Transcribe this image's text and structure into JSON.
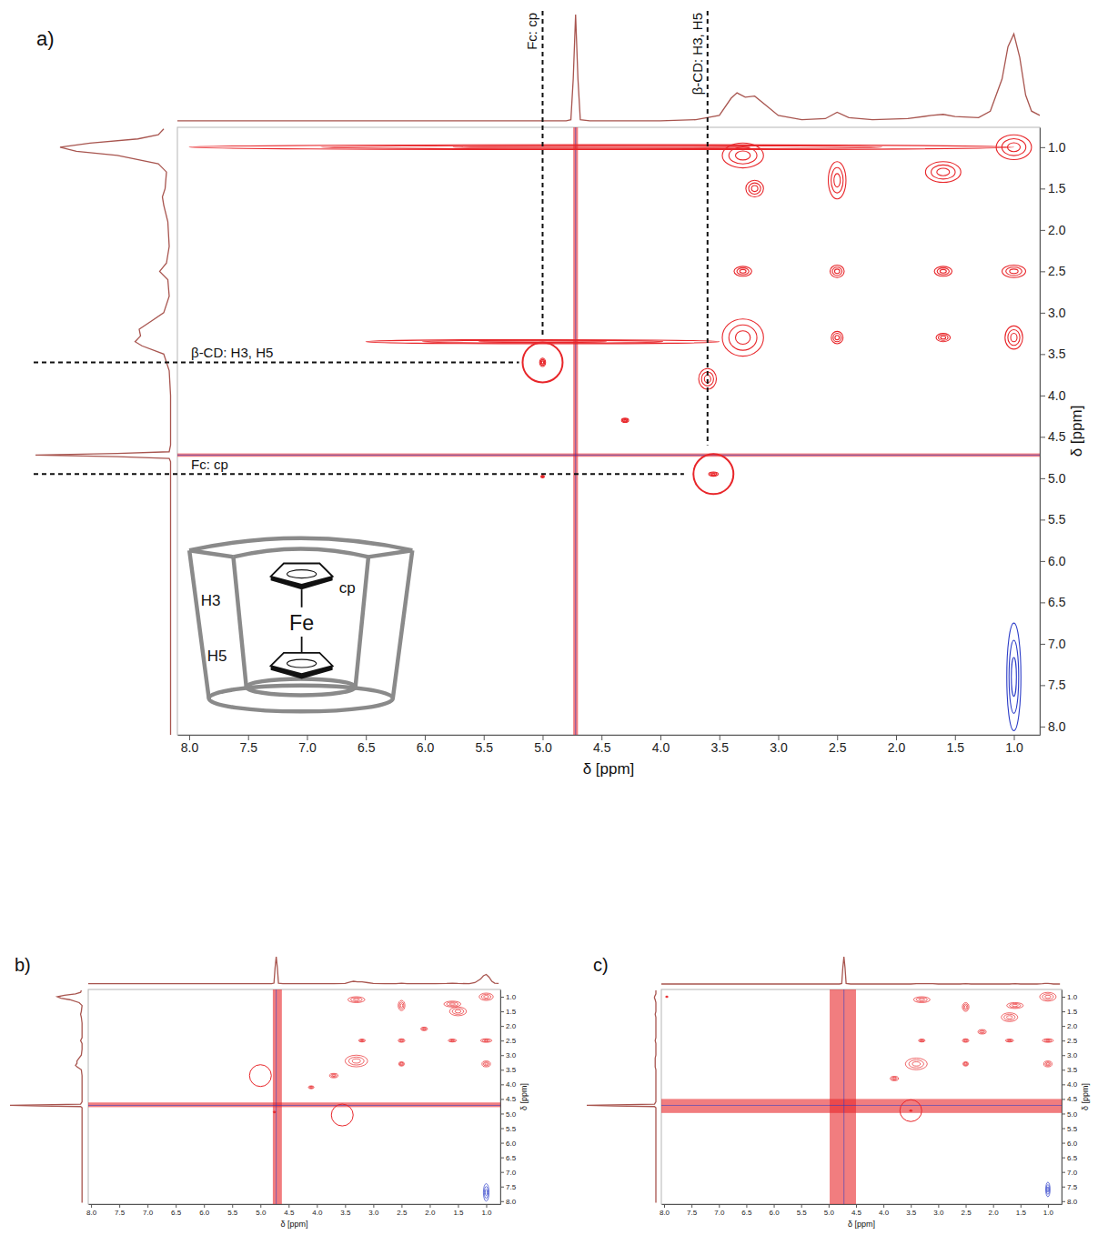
{
  "chart_data": [
    {
      "type": "contour",
      "panel": "a)",
      "xlabel": "δ [ppm]",
      "ylabel": "δ [ppm]",
      "xlim": [
        8.1,
        0.78
      ],
      "ylim": [
        0.76,
        8.1
      ],
      "xticks": [
        {
          "value": 8,
          "label": "8.0"
        },
        7.5,
        {
          "value": 7,
          "label": "7.0"
        },
        6.5,
        {
          "value": 6,
          "label": "6.0"
        },
        5.5,
        {
          "value": 5,
          "label": "5.0"
        },
        4.5,
        {
          "value": 4,
          "label": "4.0"
        },
        3.5,
        {
          "value": 3,
          "label": "3.0"
        },
        2.5,
        {
          "value": 2,
          "label": "2.0"
        },
        1.5,
        {
          "value": 1,
          "label": "1.0"
        }
      ],
      "yticks": [
        {
          "value": 1,
          "label": "1.0"
        },
        1.5,
        {
          "value": 2,
          "label": "2.0"
        },
        2.5,
        {
          "value": 3,
          "label": "3.0"
        },
        3.5,
        {
          "value": 4,
          "label": "4.0"
        },
        4.5,
        {
          "value": 5,
          "label": "5.0"
        },
        5.5,
        {
          "value": 6,
          "label": "6.0"
        },
        6.5,
        {
          "value": 7,
          "label": "7.0"
        },
        7.5,
        {
          "value": 8,
          "label": "8.0"
        }
      ],
      "projection": {
        "x": [
          8.1,
          6.0,
          5.0,
          4.8,
          4.76,
          4.74,
          4.72,
          4.7,
          4.68,
          4.6,
          4.0,
          3.7,
          3.5,
          3.4,
          3.35,
          3.28,
          3.2,
          3.1,
          3.0,
          2.8,
          2.6,
          2.5,
          2.4,
          2.2,
          1.9,
          1.7,
          1.6,
          1.5,
          1.3,
          1.2,
          1.1,
          1.05,
          1.0,
          0.95,
          0.9,
          0.85,
          0.78
        ],
        "values": [
          1,
          1,
          1,
          1,
          2,
          40,
          100,
          40,
          2,
          1,
          1,
          2,
          6,
          22,
          27,
          23,
          24,
          15,
          6,
          2,
          3,
          9,
          4,
          2,
          3,
          6,
          7,
          5,
          4,
          10,
          40,
          70,
          82,
          60,
          25,
          10,
          6
        ]
      },
      "peaks": [
        {
          "color": "#e8262a",
          "x": [
            1.0,
            1.6,
            2.5,
            3.3,
            3.2,
            1.0,
            1.6,
            2.5,
            3.3,
            3.3,
            2.5,
            1.0,
            1.6,
            3.6,
            4.3,
            3.55,
            5.0,
            5.0,
            4.5,
            5.0
          ],
          "y": [
            1.0,
            1.3,
            1.4,
            1.1,
            1.5,
            2.5,
            2.5,
            2.5,
            2.5,
            3.3,
            3.3,
            3.3,
            3.3,
            3.8,
            4.3,
            4.95,
            3.6,
            4.98,
            1.0,
            3.35
          ],
          "width_x": [
            0.3,
            0.3,
            0.15,
            0.35,
            0.15,
            0.2,
            0.15,
            0.12,
            0.15,
            0.35,
            0.1,
            0.15,
            0.12,
            0.15,
            0.06,
            0.08,
            0.05,
            0.03,
            7.0,
            3.0
          ],
          "width_y": [
            0.3,
            0.25,
            0.45,
            0.3,
            0.2,
            0.15,
            0.12,
            0.15,
            0.12,
            0.45,
            0.15,
            0.28,
            0.1,
            0.25,
            0.05,
            0.05,
            0.1,
            0.03,
            0.06,
            0.05
          ]
        },
        {
          "color": "#2b3cc8",
          "x": [
            1.0
          ],
          "y": [
            7.4
          ],
          "width_x": [
            0.12
          ],
          "width_y": [
            1.3
          ]
        }
      ],
      "solvent": {
        "ppm": 4.72,
        "band": [
          4.74,
          4.7
        ]
      },
      "circles": {
        "x": [
          5.0,
          3.55
        ],
        "y": [
          3.6,
          4.95
        ]
      },
      "guides": [
        {
          "label": "Fc: cp",
          "axis": "x",
          "value": 5.0,
          "to": 3.3
        },
        {
          "label": "β-CD: H3, H5",
          "axis": "x",
          "value": 3.6,
          "to": 4.6
        },
        {
          "label": "β-CD: H3, H5",
          "axis": "y",
          "value": 3.6,
          "to": 5.2
        },
        {
          "label": "Fc: cp",
          "axis": "y",
          "value": 4.95,
          "to": 3.8
        }
      ],
      "inset": {
        "labels": [
          "H3",
          "H5",
          "cp",
          "Fe"
        ]
      }
    },
    {
      "type": "contour",
      "panel": "b)",
      "xlabel": "δ [ppm]",
      "ylabel": "δ [ppm]",
      "xlim": [
        8.05,
        0.75
      ],
      "ylim": [
        0.75,
        8.1
      ],
      "xticks": [
        {
          "value": 8,
          "label": "8.0"
        },
        7.5,
        {
          "value": 7,
          "label": "7.0"
        },
        6.5,
        {
          "value": 6,
          "label": "6.0"
        },
        5.5,
        {
          "value": 5,
          "label": "5.0"
        },
        4.5,
        {
          "value": 4,
          "label": "4.0"
        },
        3.5,
        {
          "value": 3,
          "label": "3.0"
        },
        2.5,
        {
          "value": 2,
          "label": "2.0"
        },
        1.5,
        {
          "value": 1,
          "label": "1.0"
        }
      ],
      "yticks": [
        {
          "value": 1,
          "label": "1.0"
        },
        1.5,
        {
          "value": 2,
          "label": "2.0"
        },
        2.5,
        {
          "value": 3,
          "label": "3.0"
        },
        3.5,
        {
          "value": 4,
          "label": "4.0"
        },
        4.5,
        {
          "value": 5,
          "label": "5.0"
        },
        5.5,
        {
          "value": 6,
          "label": "6.0"
        },
        6.5,
        {
          "value": 7,
          "label": "7.0"
        },
        7.5,
        {
          "value": 8,
          "label": "8.0"
        }
      ],
      "projection": {
        "x": [
          8.05,
          6.0,
          5.0,
          4.8,
          4.76,
          4.74,
          4.72,
          4.7,
          4.68,
          4.6,
          4.0,
          3.7,
          3.5,
          3.4,
          3.35,
          3.28,
          3.2,
          3.1,
          3.0,
          2.8,
          2.6,
          2.5,
          2.4,
          2.2,
          1.9,
          1.7,
          1.6,
          1.5,
          1.3,
          1.2,
          1.1,
          1.05,
          1.0,
          0.95,
          0.9,
          0.85,
          0.78
        ],
        "values": [
          1,
          1,
          1,
          1,
          3,
          60,
          100,
          60,
          3,
          1,
          1,
          1,
          2,
          8,
          10,
          8,
          8,
          5,
          2,
          1,
          1,
          3,
          1,
          1,
          1,
          2,
          3,
          2,
          1,
          5,
          18,
          30,
          35,
          25,
          10,
          3,
          2
        ]
      },
      "peaks": [
        {
          "color": "#e8262a",
          "x": [
            1.0,
            1.6,
            2.5,
            3.3,
            1.0,
            1.6,
            2.5,
            3.2,
            3.3,
            2.5,
            1.0,
            4.1,
            1.5,
            2.1,
            3.7,
            4.75
          ],
          "y": [
            1.0,
            1.25,
            1.3,
            1.1,
            2.5,
            2.5,
            2.5,
            2.5,
            3.2,
            3.3,
            3.3,
            4.1,
            1.5,
            2.1,
            3.7,
            4.95
          ],
          "width_x": [
            0.25,
            0.3,
            0.12,
            0.3,
            0.2,
            0.15,
            0.12,
            0.12,
            0.4,
            0.1,
            0.15,
            0.1,
            0.3,
            0.12,
            0.15,
            0.05
          ],
          "width_y": [
            0.25,
            0.2,
            0.35,
            0.2,
            0.12,
            0.1,
            0.12,
            0.1,
            0.4,
            0.15,
            0.2,
            0.1,
            0.3,
            0.12,
            0.15,
            0.05
          ]
        },
        {
          "color": "#2b3cc8",
          "x": [
            1.0
          ],
          "y": [
            7.7
          ],
          "width_x": [
            0.1
          ],
          "width_y": [
            0.6
          ]
        }
      ],
      "solvent": {
        "ppm": 4.72,
        "band": [
          4.78,
          4.62
        ]
      },
      "circles": {
        "x": [
          5.0,
          3.55
        ],
        "y": [
          3.7,
          5.05
        ]
      }
    },
    {
      "type": "contour",
      "panel": "c)",
      "xlabel": "δ [ppm]",
      "ylabel": "δ [ppm]",
      "xlim": [
        8.05,
        0.75
      ],
      "ylim": [
        0.75,
        8.1
      ],
      "xticks": [
        {
          "value": 8,
          "label": "8.0"
        },
        7.5,
        {
          "value": 7,
          "label": "7.0"
        },
        6.5,
        {
          "value": 6,
          "label": "6.0"
        },
        5.5,
        {
          "value": 5,
          "label": "5.0"
        },
        4.5,
        {
          "value": 4,
          "label": "4.0"
        },
        3.5,
        {
          "value": 3,
          "label": "3.0"
        },
        2.5,
        {
          "value": 2,
          "label": "2.0"
        },
        1.5,
        {
          "value": 1,
          "label": "1.0"
        }
      ],
      "yticks": [
        {
          "value": 1,
          "label": "1.0"
        },
        1.5,
        {
          "value": 2,
          "label": "2.0"
        },
        2.5,
        {
          "value": 3,
          "label": "3.0"
        },
        3.5,
        {
          "value": 4,
          "label": "4.0"
        },
        4.5,
        {
          "value": 5,
          "label": "5.0"
        },
        5.5,
        {
          "value": 6,
          "label": "6.0"
        },
        6.5,
        {
          "value": 7,
          "label": "7.0"
        },
        7.5,
        {
          "value": 8,
          "label": "8.0"
        }
      ],
      "projection": {
        "x": [
          8.05,
          6.0,
          5.0,
          4.8,
          4.76,
          4.74,
          4.72,
          4.7,
          4.68,
          4.6,
          4.0,
          3.7,
          3.5,
          3.4,
          3.35,
          3.28,
          3.2,
          3.1,
          3.0,
          2.8,
          2.6,
          2.5,
          2.4,
          2.2,
          1.9,
          1.7,
          1.6,
          1.5,
          1.3,
          1.2,
          1.1,
          1.05,
          1.0,
          0.95,
          0.9,
          0.85,
          0.78
        ],
        "values": [
          0,
          0,
          0,
          0,
          2,
          60,
          100,
          60,
          2,
          0,
          0,
          0,
          0,
          1,
          1,
          1,
          1,
          1,
          0,
          0,
          0,
          1,
          0,
          0,
          0,
          0,
          1,
          0,
          0,
          0,
          1,
          2,
          2,
          1,
          0,
          0,
          0
        ]
      },
      "peaks": [
        {
          "color": "#e8262a",
          "x": [
            1.0,
            1.6,
            2.5,
            3.3,
            1.0,
            1.7,
            2.5,
            3.3,
            3.4,
            2.5,
            1.0,
            1.7,
            2.2,
            3.8,
            3.5,
            7.95
          ],
          "y": [
            1.0,
            1.3,
            1.35,
            1.1,
            2.5,
            2.5,
            2.5,
            2.5,
            3.3,
            3.3,
            3.3,
            1.7,
            2.2,
            3.8,
            4.9,
            1.0
          ],
          "width_x": [
            0.3,
            0.3,
            0.12,
            0.3,
            0.2,
            0.15,
            0.12,
            0.12,
            0.4,
            0.1,
            0.15,
            0.3,
            0.15,
            0.15,
            0.06,
            0.05
          ],
          "width_y": [
            0.3,
            0.2,
            0.3,
            0.2,
            0.12,
            0.1,
            0.12,
            0.1,
            0.4,
            0.15,
            0.2,
            0.3,
            0.15,
            0.15,
            0.03,
            0.05
          ]
        },
        {
          "color": "#2b3cc8",
          "x": [
            1.0
          ],
          "y": [
            7.6
          ],
          "width_x": [
            0.08
          ],
          "width_y": [
            0.5
          ]
        }
      ],
      "solvent": {
        "ppm": 4.72,
        "band": [
          4.98,
          4.5
        ]
      },
      "circles": {
        "x": [
          3.5
        ],
        "y": [
          4.9
        ]
      }
    }
  ]
}
